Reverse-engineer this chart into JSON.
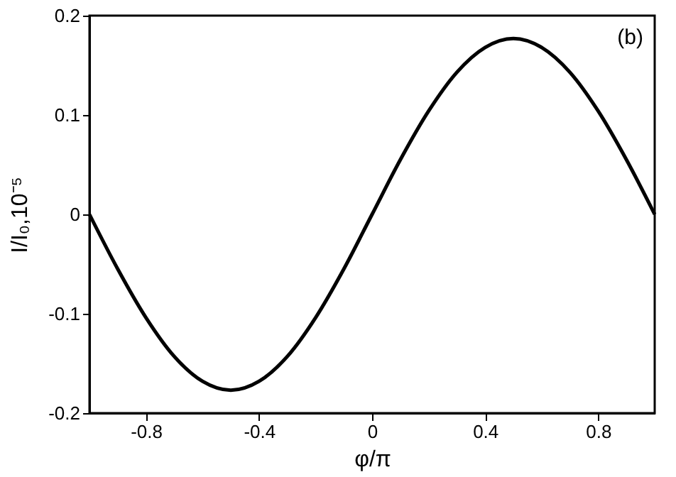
{
  "chart_data": {
    "type": "line",
    "xlabel": "φ/π",
    "ylabel": "I/I₀,10⁻⁵",
    "annotations": [
      "(b)"
    ],
    "x": [
      -1,
      -0.9,
      -0.8,
      -0.7,
      -0.6,
      -0.5,
      -0.4,
      -0.3,
      -0.2,
      -0.1,
      0,
      0.1,
      0.2,
      0.3,
      0.4,
      0.5,
      0.6,
      0.7,
      0.8,
      0.9,
      1
    ],
    "series": [
      {
        "color": "#000000",
        "values": [
          0,
          -0.055,
          -0.104,
          -0.143,
          -0.168,
          -0.177,
          -0.168,
          -0.143,
          -0.104,
          -0.055,
          0,
          0.055,
          0.104,
          0.143,
          0.168,
          0.177,
          0.168,
          0.143,
          0.104,
          0.055,
          0
        ]
      }
    ],
    "xlim": [
      -1,
      1
    ],
    "xticks": [
      -0.8,
      -0.4,
      0,
      0.4,
      0.8
    ],
    "ylim": [
      -0.2,
      0.2
    ],
    "yticks": [
      -0.2,
      -0.1,
      0,
      0.1,
      0.2
    ],
    "grid": false,
    "legend": false,
    "marker": "none",
    "line_style": "solid"
  }
}
